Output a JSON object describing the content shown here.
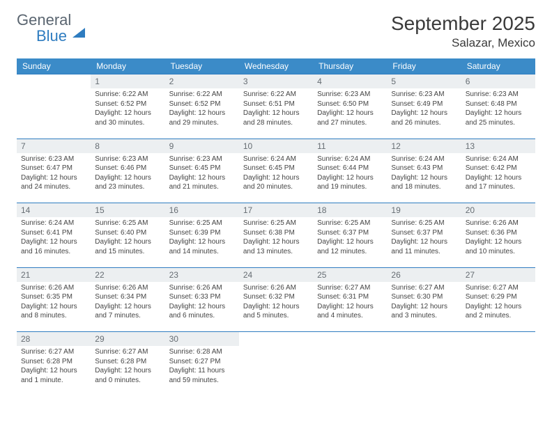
{
  "logo": {
    "word1": "General",
    "word2": "Blue"
  },
  "title": "September 2025",
  "location": "Salazar, Mexico",
  "header_bg": "#3b8bc8",
  "header_text_color": "#ffffff",
  "daynum_bg": "#eceff1",
  "daynum_border": "#2e7cc0",
  "text_color": "#444444",
  "weekdays": [
    "Sunday",
    "Monday",
    "Tuesday",
    "Wednesday",
    "Thursday",
    "Friday",
    "Saturday"
  ],
  "weeks": [
    {
      "nums": [
        "",
        "1",
        "2",
        "3",
        "4",
        "5",
        "6"
      ],
      "cells": [
        null,
        {
          "sunrise": "Sunrise: 6:22 AM",
          "sunset": "Sunset: 6:52 PM",
          "daylight": "Daylight: 12 hours and 30 minutes."
        },
        {
          "sunrise": "Sunrise: 6:22 AM",
          "sunset": "Sunset: 6:52 PM",
          "daylight": "Daylight: 12 hours and 29 minutes."
        },
        {
          "sunrise": "Sunrise: 6:22 AM",
          "sunset": "Sunset: 6:51 PM",
          "daylight": "Daylight: 12 hours and 28 minutes."
        },
        {
          "sunrise": "Sunrise: 6:23 AM",
          "sunset": "Sunset: 6:50 PM",
          "daylight": "Daylight: 12 hours and 27 minutes."
        },
        {
          "sunrise": "Sunrise: 6:23 AM",
          "sunset": "Sunset: 6:49 PM",
          "daylight": "Daylight: 12 hours and 26 minutes."
        },
        {
          "sunrise": "Sunrise: 6:23 AM",
          "sunset": "Sunset: 6:48 PM",
          "daylight": "Daylight: 12 hours and 25 minutes."
        }
      ]
    },
    {
      "nums": [
        "7",
        "8",
        "9",
        "10",
        "11",
        "12",
        "13"
      ],
      "cells": [
        {
          "sunrise": "Sunrise: 6:23 AM",
          "sunset": "Sunset: 6:47 PM",
          "daylight": "Daylight: 12 hours and 24 minutes."
        },
        {
          "sunrise": "Sunrise: 6:23 AM",
          "sunset": "Sunset: 6:46 PM",
          "daylight": "Daylight: 12 hours and 23 minutes."
        },
        {
          "sunrise": "Sunrise: 6:23 AM",
          "sunset": "Sunset: 6:45 PM",
          "daylight": "Daylight: 12 hours and 21 minutes."
        },
        {
          "sunrise": "Sunrise: 6:24 AM",
          "sunset": "Sunset: 6:45 PM",
          "daylight": "Daylight: 12 hours and 20 minutes."
        },
        {
          "sunrise": "Sunrise: 6:24 AM",
          "sunset": "Sunset: 6:44 PM",
          "daylight": "Daylight: 12 hours and 19 minutes."
        },
        {
          "sunrise": "Sunrise: 6:24 AM",
          "sunset": "Sunset: 6:43 PM",
          "daylight": "Daylight: 12 hours and 18 minutes."
        },
        {
          "sunrise": "Sunrise: 6:24 AM",
          "sunset": "Sunset: 6:42 PM",
          "daylight": "Daylight: 12 hours and 17 minutes."
        }
      ]
    },
    {
      "nums": [
        "14",
        "15",
        "16",
        "17",
        "18",
        "19",
        "20"
      ],
      "cells": [
        {
          "sunrise": "Sunrise: 6:24 AM",
          "sunset": "Sunset: 6:41 PM",
          "daylight": "Daylight: 12 hours and 16 minutes."
        },
        {
          "sunrise": "Sunrise: 6:25 AM",
          "sunset": "Sunset: 6:40 PM",
          "daylight": "Daylight: 12 hours and 15 minutes."
        },
        {
          "sunrise": "Sunrise: 6:25 AM",
          "sunset": "Sunset: 6:39 PM",
          "daylight": "Daylight: 12 hours and 14 minutes."
        },
        {
          "sunrise": "Sunrise: 6:25 AM",
          "sunset": "Sunset: 6:38 PM",
          "daylight": "Daylight: 12 hours and 13 minutes."
        },
        {
          "sunrise": "Sunrise: 6:25 AM",
          "sunset": "Sunset: 6:37 PM",
          "daylight": "Daylight: 12 hours and 12 minutes."
        },
        {
          "sunrise": "Sunrise: 6:25 AM",
          "sunset": "Sunset: 6:37 PM",
          "daylight": "Daylight: 12 hours and 11 minutes."
        },
        {
          "sunrise": "Sunrise: 6:26 AM",
          "sunset": "Sunset: 6:36 PM",
          "daylight": "Daylight: 12 hours and 10 minutes."
        }
      ]
    },
    {
      "nums": [
        "21",
        "22",
        "23",
        "24",
        "25",
        "26",
        "27"
      ],
      "cells": [
        {
          "sunrise": "Sunrise: 6:26 AM",
          "sunset": "Sunset: 6:35 PM",
          "daylight": "Daylight: 12 hours and 8 minutes."
        },
        {
          "sunrise": "Sunrise: 6:26 AM",
          "sunset": "Sunset: 6:34 PM",
          "daylight": "Daylight: 12 hours and 7 minutes."
        },
        {
          "sunrise": "Sunrise: 6:26 AM",
          "sunset": "Sunset: 6:33 PM",
          "daylight": "Daylight: 12 hours and 6 minutes."
        },
        {
          "sunrise": "Sunrise: 6:26 AM",
          "sunset": "Sunset: 6:32 PM",
          "daylight": "Daylight: 12 hours and 5 minutes."
        },
        {
          "sunrise": "Sunrise: 6:27 AM",
          "sunset": "Sunset: 6:31 PM",
          "daylight": "Daylight: 12 hours and 4 minutes."
        },
        {
          "sunrise": "Sunrise: 6:27 AM",
          "sunset": "Sunset: 6:30 PM",
          "daylight": "Daylight: 12 hours and 3 minutes."
        },
        {
          "sunrise": "Sunrise: 6:27 AM",
          "sunset": "Sunset: 6:29 PM",
          "daylight": "Daylight: 12 hours and 2 minutes."
        }
      ]
    },
    {
      "nums": [
        "28",
        "29",
        "30",
        "",
        "",
        "",
        ""
      ],
      "cells": [
        {
          "sunrise": "Sunrise: 6:27 AM",
          "sunset": "Sunset: 6:28 PM",
          "daylight": "Daylight: 12 hours and 1 minute."
        },
        {
          "sunrise": "Sunrise: 6:27 AM",
          "sunset": "Sunset: 6:28 PM",
          "daylight": "Daylight: 12 hours and 0 minutes."
        },
        {
          "sunrise": "Sunrise: 6:28 AM",
          "sunset": "Sunset: 6:27 PM",
          "daylight": "Daylight: 11 hours and 59 minutes."
        },
        null,
        null,
        null,
        null
      ]
    }
  ]
}
